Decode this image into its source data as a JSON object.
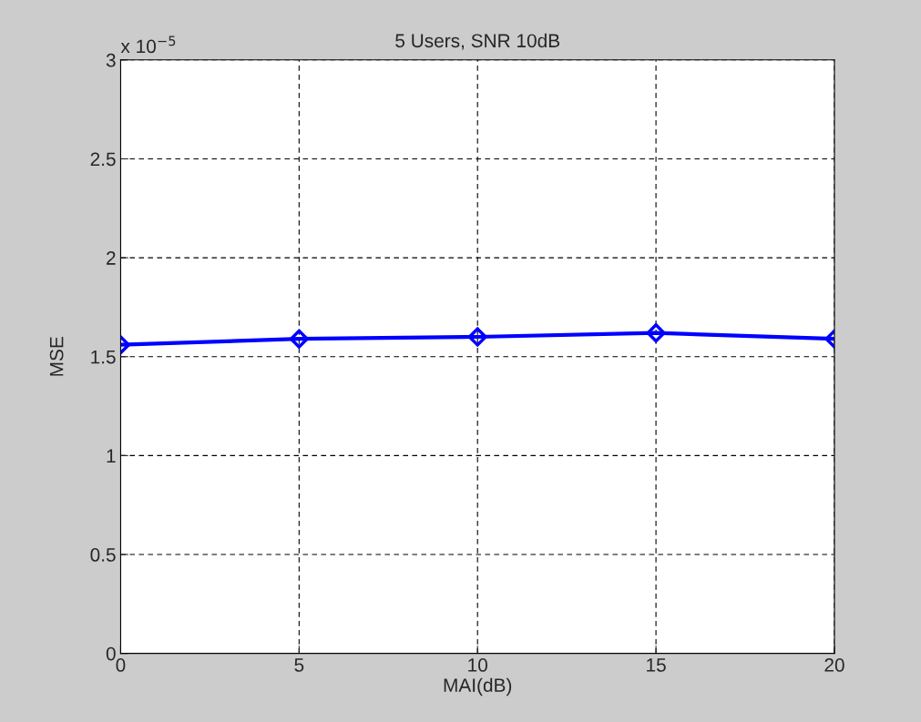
{
  "chart_data": {
    "type": "line",
    "title": "5 Users, SNR 10dB",
    "xlabel": "MAI(dB)",
    "ylabel": "MSE",
    "annotations": [
      "x 10$^{−5}$"
    ],
    "x": [
      0,
      5,
      10,
      15,
      20
    ],
    "series": [
      {
        "color": "#0000ff",
        "values": [
          1.56,
          1.59,
          1.6,
          1.62,
          1.59
        ]
      }
    ],
    "xlim": [
      0,
      20
    ],
    "xticks": [
      0,
      5,
      10,
      15,
      20
    ],
    "ylim": [
      0,
      3
    ],
    "yticks": [
      0,
      0.5,
      1,
      1.5,
      2,
      2.5,
      3
    ],
    "grid": true,
    "marker": "diamond",
    "line_style": "solid"
  }
}
